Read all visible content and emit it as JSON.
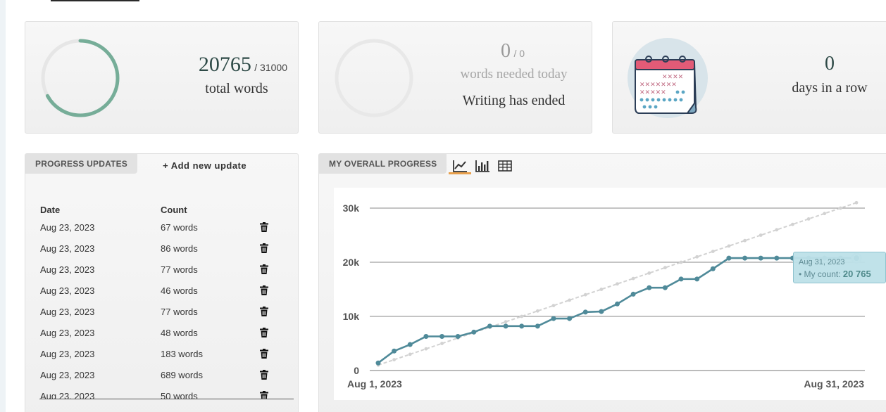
{
  "stats": {
    "total": {
      "count": "20765",
      "goal": "/ 31000",
      "label": "total words",
      "progress": 0.67
    },
    "today": {
      "count": "0",
      "goal": "/ 0",
      "label": "words needed today",
      "status": "Writing has ended",
      "progress": 0
    },
    "streak": {
      "count": "0",
      "label": "days in a row"
    }
  },
  "updates": {
    "tab_label": "PROGRESS UPDATES",
    "add_label": "+ Add new update",
    "col_date": "Date",
    "col_count": "Count",
    "rows": [
      {
        "date": "Aug 23, 2023",
        "count": "67 words"
      },
      {
        "date": "Aug 23, 2023",
        "count": "86 words"
      },
      {
        "date": "Aug 23, 2023",
        "count": "77 words"
      },
      {
        "date": "Aug 23, 2023",
        "count": "46 words"
      },
      {
        "date": "Aug 23, 2023",
        "count": "77 words"
      },
      {
        "date": "Aug 23, 2023",
        "count": "48 words"
      },
      {
        "date": "Aug 23, 2023",
        "count": "183 words"
      },
      {
        "date": "Aug 23, 2023",
        "count": "689 words"
      },
      {
        "date": "Aug 23, 2023",
        "count": "50 words"
      }
    ]
  },
  "overall": {
    "tab_label": "MY OVERALL PROGRESS",
    "views": [
      "line-chart-icon",
      "bar-chart-icon",
      "table-icon"
    ],
    "active_view": "line"
  },
  "tooltip": {
    "date": "Aug 31, 2023",
    "label": "My count:",
    "value": "20 765"
  },
  "colors": {
    "accent": "#4f8a99",
    "ring": "#76ad98",
    "goal_line": "#d0d0d0",
    "tab_active": "#e8a04c"
  },
  "chart_data": {
    "type": "line",
    "x_start_label": "Aug 1, 2023",
    "x_end_label": "Aug 31, 2023",
    "y_ticks": [
      "0",
      "10k",
      "20k",
      "30k"
    ],
    "ylim": [
      0,
      30000
    ],
    "grid": true,
    "series": [
      {
        "name": "My count",
        "values": [
          1400,
          3600,
          4800,
          6300,
          6300,
          6300,
          7100,
          8200,
          8200,
          8200,
          8200,
          9600,
          9600,
          10800,
          10900,
          12300,
          14100,
          15300,
          15300,
          16900,
          16900,
          18800,
          20765,
          20765,
          20765,
          20765,
          20765,
          20765,
          20765,
          20765,
          20765
        ]
      },
      {
        "values": [
          1000,
          2000,
          3000,
          4000,
          5000,
          6000,
          7000,
          8000,
          9000,
          10000,
          11000,
          12000,
          13000,
          14000,
          15000,
          16000,
          17000,
          18000,
          19000,
          20000,
          21000,
          22000,
          23000,
          24000,
          25000,
          26000,
          27000,
          28000,
          29000,
          30000,
          31000
        ]
      }
    ]
  }
}
